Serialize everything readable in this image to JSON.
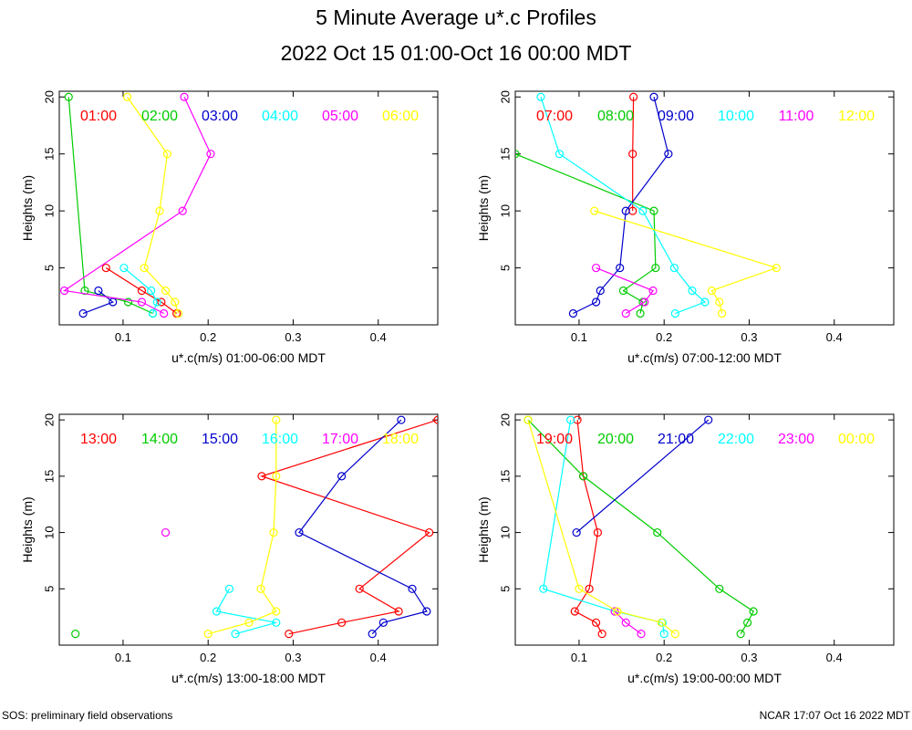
{
  "page": {
    "title": "5 Minute Average u*.c Profiles",
    "subtitle": "2022 Oct 15 01:00-Oct 16 00:00 MDT",
    "footer_left": "SOS: preliminary field observations",
    "footer_right": "NCAR 17:07 Oct 16 2022 MDT"
  },
  "colors": [
    "#ff0000",
    "#00cc00",
    "#0000cc",
    "#00ffff",
    "#ff00ff",
    "#ffff00"
  ],
  "chart_data": [
    {
      "type": "line",
      "xlabel": "u*.c(m/s) 01:00-06:00 MDT",
      "ylabel": "Heights (m)",
      "xlim": [
        0.025,
        0.47
      ],
      "ylim": [
        0,
        20.5
      ],
      "xticks": [
        0.1,
        0.2,
        0.3,
        0.4
      ],
      "xtick_labels": [
        "0.1",
        "0.2",
        "0.3",
        "0.4"
      ],
      "yticks": [
        5,
        10,
        15,
        20
      ],
      "ytick_labels": [
        "5",
        "10",
        "15",
        "20"
      ],
      "series": [
        {
          "name": "01:00",
          "points": [
            [
              0.163,
              1
            ],
            [
              0.145,
              2
            ],
            [
              0.122,
              3
            ],
            [
              0.08,
              5
            ]
          ]
        },
        {
          "name": "02:00",
          "points": [
            [
              0.135,
              1
            ],
            [
              0.106,
              2
            ],
            [
              0.055,
              3
            ],
            [
              0.036,
              20
            ]
          ]
        },
        {
          "name": "03:00",
          "points": [
            [
              0.053,
              1
            ],
            [
              0.088,
              2
            ],
            [
              0.071,
              3
            ]
          ]
        },
        {
          "name": "04:00",
          "points": [
            [
              0.135,
              1
            ],
            [
              0.14,
              2
            ],
            [
              0.133,
              3
            ],
            [
              0.101,
              5
            ]
          ]
        },
        {
          "name": "05:00",
          "points": [
            [
              0.148,
              1
            ],
            [
              0.122,
              2
            ],
            [
              0.031,
              3
            ],
            [
              0.17,
              10
            ],
            [
              0.203,
              15
            ],
            [
              0.172,
              20
            ]
          ]
        },
        {
          "name": "06:00",
          "points": [
            [
              0.165,
              1
            ],
            [
              0.161,
              2
            ],
            [
              0.15,
              3
            ],
            [
              0.125,
              5
            ],
            [
              0.143,
              10
            ],
            [
              0.152,
              15
            ],
            [
              0.105,
              20
            ]
          ]
        }
      ]
    },
    {
      "type": "line",
      "xlabel": "u*.c(m/s) 07:00-12:00 MDT",
      "ylabel": "Heights (m)",
      "xlim": [
        0.025,
        0.47
      ],
      "ylim": [
        0,
        20.5
      ],
      "xticks": [
        0.1,
        0.2,
        0.3,
        0.4
      ],
      "xtick_labels": [
        "0.1",
        "0.2",
        "0.3",
        "0.4"
      ],
      "yticks": [
        5,
        10,
        15,
        20
      ],
      "ytick_labels": [
        "5",
        "10",
        "15",
        "20"
      ],
      "series": [
        {
          "name": "07:00",
          "points": [
            [
              0.163,
              10
            ],
            [
              0.163,
              15
            ],
            [
              0.164,
              20
            ]
          ]
        },
        {
          "name": "08:00",
          "points": [
            [
              0.172,
              1
            ],
            [
              0.175,
              2
            ],
            [
              0.152,
              3
            ],
            [
              0.19,
              5
            ],
            [
              0.188,
              10
            ],
            [
              0.025,
              15
            ]
          ]
        },
        {
          "name": "09:00",
          "points": [
            [
              0.093,
              1
            ],
            [
              0.12,
              2
            ],
            [
              0.125,
              3
            ],
            [
              0.148,
              5
            ],
            [
              0.155,
              10
            ],
            [
              0.205,
              15
            ],
            [
              0.188,
              20
            ]
          ]
        },
        {
          "name": "10:00",
          "points": [
            [
              0.213,
              1
            ],
            [
              0.248,
              2
            ],
            [
              0.233,
              3
            ],
            [
              0.212,
              5
            ],
            [
              0.175,
              10
            ],
            [
              0.077,
              15
            ],
            [
              0.055,
              20
            ]
          ]
        },
        {
          "name": "11:00",
          "points": [
            [
              0.155,
              1
            ],
            [
              0.177,
              2
            ],
            [
              0.187,
              3
            ],
            [
              0.12,
              5
            ]
          ]
        },
        {
          "name": "12:00",
          "points": [
            [
              0.268,
              1
            ],
            [
              0.265,
              2
            ],
            [
              0.256,
              3
            ],
            [
              0.332,
              5
            ],
            [
              0.118,
              10
            ]
          ]
        }
      ]
    },
    {
      "type": "line",
      "xlabel": "u*.c(m/s) 13:00-18:00 MDT",
      "ylabel": "Heights (m)",
      "xlim": [
        0.025,
        0.47
      ],
      "ylim": [
        0,
        20.5
      ],
      "xticks": [
        0.1,
        0.2,
        0.3,
        0.4
      ],
      "xtick_labels": [
        "0.1",
        "0.2",
        "0.3",
        "0.4"
      ],
      "yticks": [
        5,
        10,
        15,
        20
      ],
      "ytick_labels": [
        "5",
        "10",
        "15",
        "20"
      ],
      "series": [
        {
          "name": "13:00",
          "points": [
            [
              0.295,
              1
            ],
            [
              0.357,
              2
            ],
            [
              0.424,
              3
            ],
            [
              0.378,
              5
            ],
            [
              0.46,
              10
            ],
            [
              0.263,
              15
            ],
            [
              0.47,
              20
            ]
          ]
        },
        {
          "name": "14:00",
          "points": [
            [
              0.044,
              1
            ]
          ]
        },
        {
          "name": "15:00",
          "points": [
            [
              0.393,
              1
            ],
            [
              0.406,
              2
            ],
            [
              0.457,
              3
            ],
            [
              0.44,
              5
            ],
            [
              0.307,
              10
            ],
            [
              0.357,
              15
            ],
            [
              0.427,
              20
            ]
          ]
        },
        {
          "name": "16:00",
          "points": [
            [
              0.232,
              1
            ],
            [
              0.28,
              2
            ],
            [
              0.21,
              3
            ],
            [
              0.225,
              5
            ]
          ]
        },
        {
          "name": "17:00",
          "points": [
            [
              0.15,
              10
            ]
          ]
        },
        {
          "name": "18:00",
          "points": [
            [
              0.2,
              1
            ],
            [
              0.248,
              2
            ],
            [
              0.28,
              3
            ],
            [
              0.262,
              5
            ],
            [
              0.277,
              10
            ],
            [
              0.28,
              15
            ],
            [
              0.28,
              20
            ]
          ]
        }
      ]
    },
    {
      "type": "line",
      "xlabel": "u*.c(m/s) 19:00-00:00 MDT",
      "ylabel": "Heights (m)",
      "xlim": [
        0.025,
        0.47
      ],
      "ylim": [
        0,
        20.5
      ],
      "xticks": [
        0.1,
        0.2,
        0.3,
        0.4
      ],
      "xtick_labels": [
        "0.1",
        "0.2",
        "0.3",
        "0.4"
      ],
      "yticks": [
        5,
        10,
        15,
        20
      ],
      "ytick_labels": [
        "5",
        "10",
        "15",
        "20"
      ],
      "series": [
        {
          "name": "19:00",
          "points": [
            [
              0.127,
              1
            ],
            [
              0.12,
              2
            ],
            [
              0.095,
              3
            ],
            [
              0.112,
              5
            ],
            [
              0.122,
              10
            ],
            [
              0.105,
              15
            ],
            [
              0.098,
              20
            ]
          ]
        },
        {
          "name": "20:00",
          "points": [
            [
              0.29,
              1
            ],
            [
              0.298,
              2
            ],
            [
              0.305,
              3
            ],
            [
              0.265,
              5
            ],
            [
              0.192,
              10
            ],
            [
              0.105,
              15
            ],
            [
              0.04,
              20
            ]
          ]
        },
        {
          "name": "21:00",
          "points": [
            [
              0.097,
              10
            ],
            [
              0.252,
              20
            ]
          ]
        },
        {
          "name": "22:00",
          "points": [
            [
              0.2,
              1
            ],
            [
              0.198,
              2
            ],
            [
              0.142,
              3
            ],
            [
              0.058,
              5
            ],
            [
              0.09,
              20
            ]
          ]
        },
        {
          "name": "23:00",
          "points": [
            [
              0.173,
              1
            ],
            [
              0.155,
              2
            ],
            [
              0.142,
              3
            ]
          ]
        },
        {
          "name": "00:00",
          "points": [
            [
              0.213,
              1
            ],
            [
              0.197,
              2
            ],
            [
              0.145,
              3
            ],
            [
              0.1,
              5
            ],
            [
              0.04,
              20
            ]
          ]
        }
      ]
    }
  ]
}
